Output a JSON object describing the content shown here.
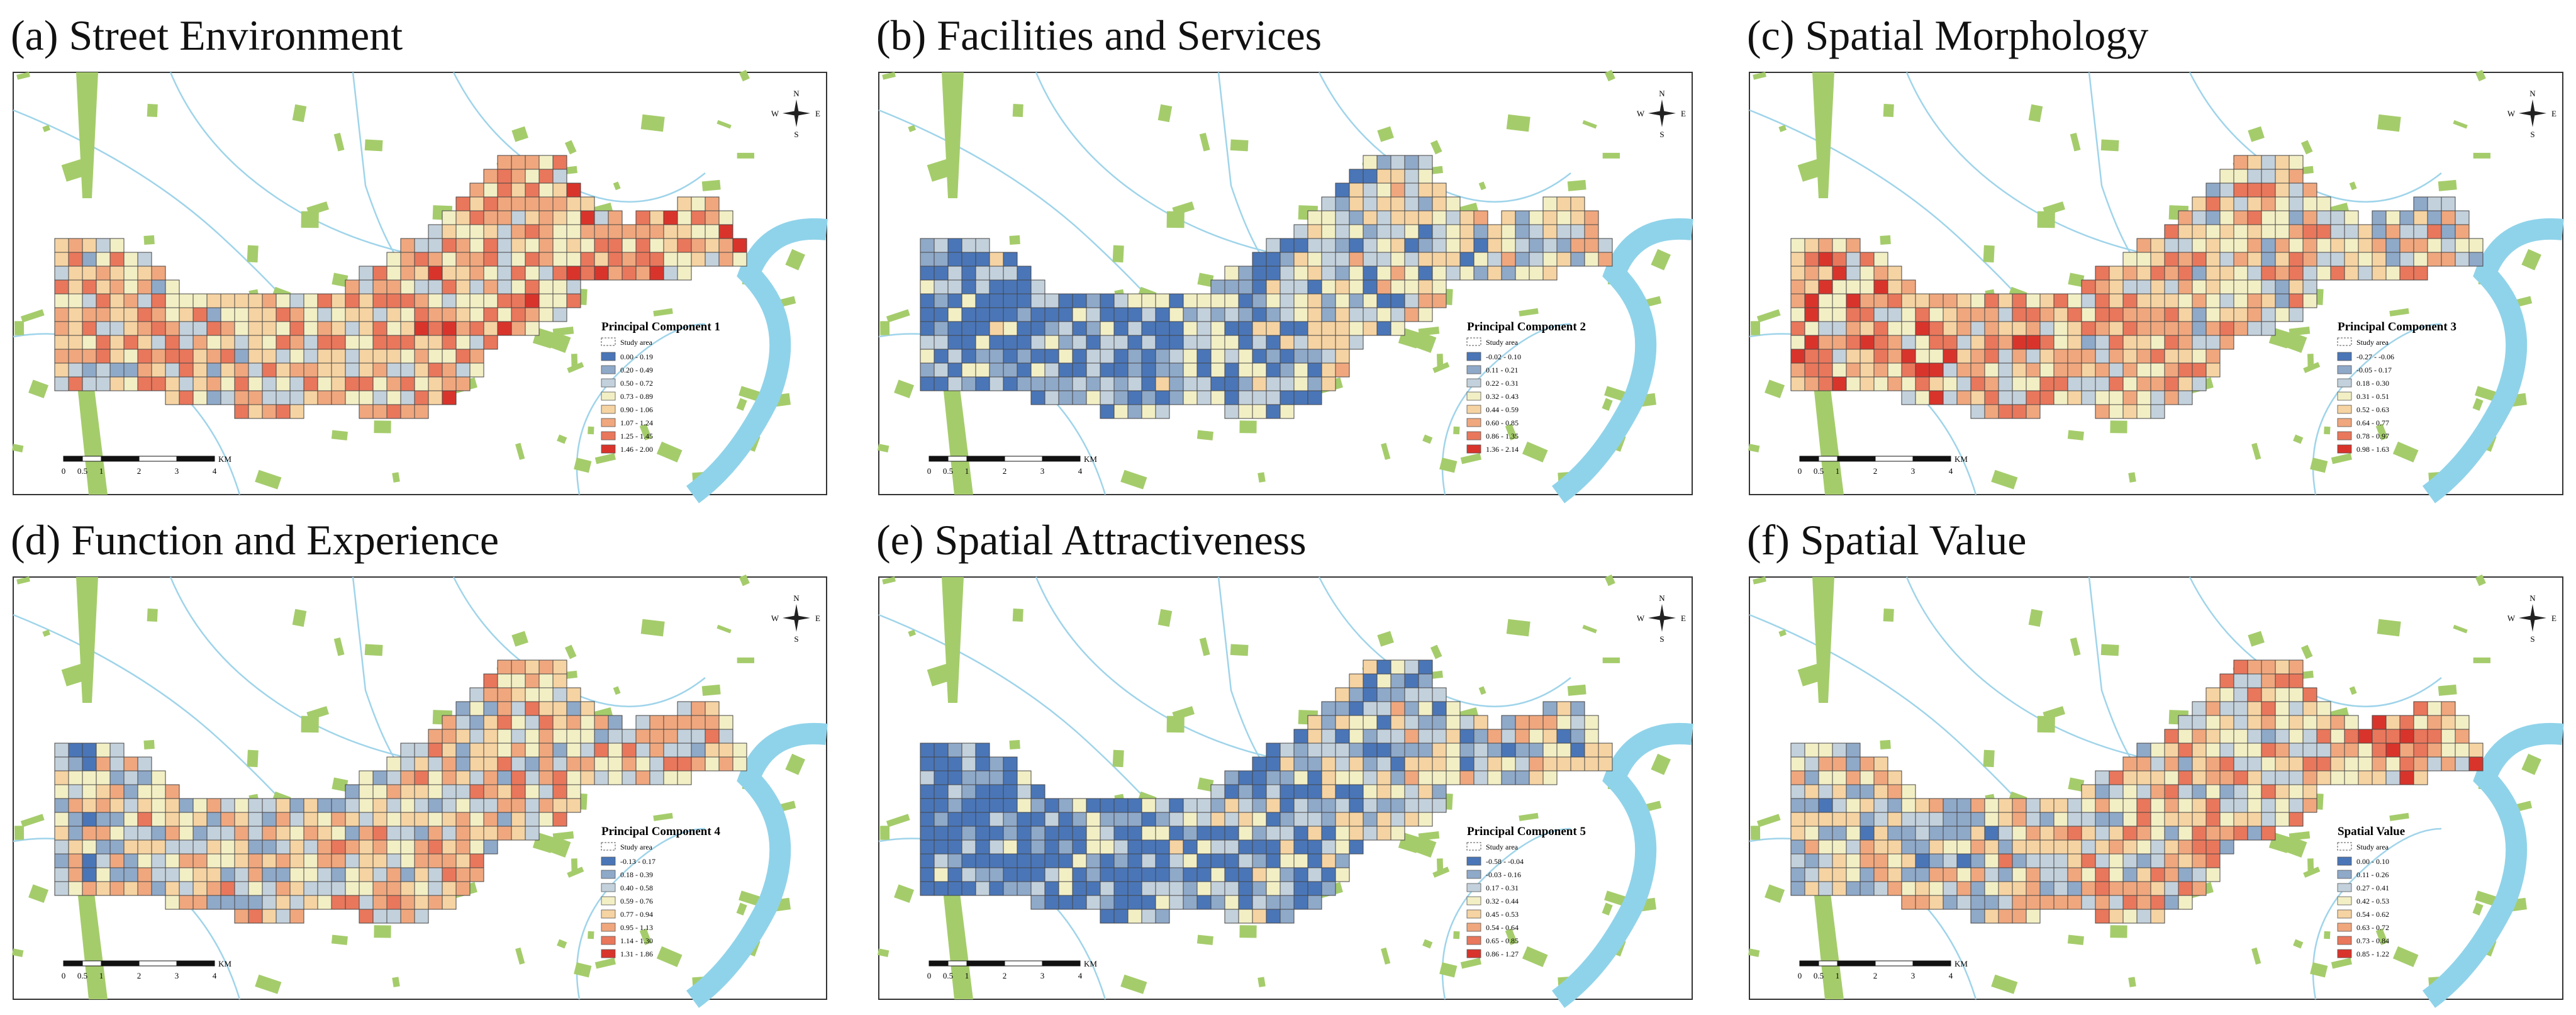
{
  "panels": [
    {
      "title": "(a) Street Environment",
      "legend_title": "Principal Component 1",
      "study_area_label": "Study area",
      "legend": [
        "0.00 - 0.19",
        "0.20 - 0.49",
        "0.50 - 0.72",
        "0.73 - 0.89",
        "0.90 - 1.06",
        "1.07 - 1.24",
        "1.25 - 1.45",
        "1.46 - 2.00"
      ]
    },
    {
      "title": "(b) Facilities and Services",
      "legend_title": "Principal Component 2",
      "study_area_label": "Study area",
      "legend": [
        "-0.02 - 0.10",
        "0.11 - 0.21",
        "0.22 - 0.31",
        "0.32 - 0.43",
        "0.44 - 0.59",
        "0.60 - 0.85",
        "0.86 - 1.35",
        "1.36 - 2.14"
      ]
    },
    {
      "title": "(c) Spatial Morphology",
      "legend_title": "Principal Component 3",
      "study_area_label": "Study area",
      "legend": [
        "-0.27 - -0.06",
        "-0.05 - 0.17",
        "0.18 - 0.30",
        "0.31 - 0.51",
        "0.52 - 0.63",
        "0.64 - 0.77",
        "0.78 - 0.97",
        "0.98 - 1.63"
      ]
    },
    {
      "title": "(d) Function and Experience",
      "legend_title": "Principal Component 4",
      "study_area_label": "Study area",
      "legend": [
        "-0.13 - 0.17",
        "0.18 - 0.39",
        "0.40 - 0.58",
        "0.59 - 0.76",
        "0.77 - 0.94",
        "0.95 - 1.13",
        "1.14 - 1.30",
        "1.31 - 1.86"
      ]
    },
    {
      "title": "(e) Spatial Attractiveness",
      "legend_title": "Principal Component 5",
      "study_area_label": "Study area",
      "legend": [
        "-0.58 - -0.04",
        "-0.03 - 0.16",
        "0.17 - 0.31",
        "0.32 - 0.44",
        "0.45 - 0.53",
        "0.54 - 0.64",
        "0.65 - 0.85",
        "0.86 - 1.27"
      ]
    },
    {
      "title": "(f) Spatial Value",
      "legend_title": "Spatial Value",
      "study_area_label": "Study area",
      "legend": [
        "0.00 - 0.10",
        "0.11 - 0.26",
        "0.27 - 0.41",
        "0.42 - 0.53",
        "0.54 - 0.62",
        "0.63 - 0.72",
        "0.73 - 0.84",
        "0.85 - 1.22"
      ]
    }
  ],
  "legend_colors": [
    "#4a76b8",
    "#8fa9c9",
    "#c3d1dc",
    "#f3efc5",
    "#f6d3a2",
    "#f0a77e",
    "#e9775c",
    "#d9342b"
  ],
  "scale_bar": {
    "labels": [
      "0",
      "0.5",
      "1",
      "2",
      "3",
      "4"
    ],
    "unit": "KM"
  },
  "compass": {
    "n": "N",
    "s": "S",
    "w": "W",
    "e": "E"
  }
}
